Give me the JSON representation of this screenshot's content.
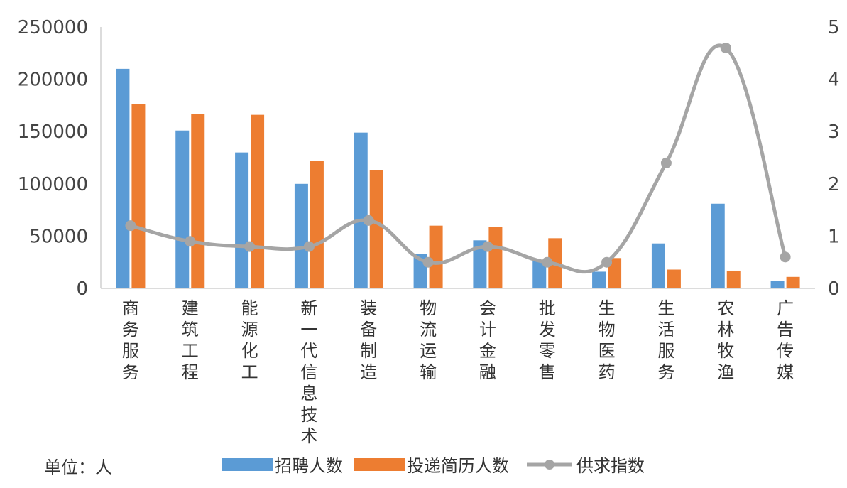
{
  "chart_data": {
    "type": "bar",
    "categories": [
      "商务服务",
      "建筑工程",
      "能源化工",
      "新一代信息技术",
      "装备制造",
      "物流运输",
      "会计金融",
      "批发零售",
      "生物医药",
      "生活服务",
      "农林牧渔",
      "广告传媒"
    ],
    "series": [
      {
        "name": "招聘人数",
        "type": "bar",
        "axis": "left",
        "color": "#5b9bd5",
        "values": [
          210000,
          151000,
          130000,
          100000,
          149000,
          33000,
          46000,
          26000,
          16000,
          43000,
          81000,
          7000
        ]
      },
      {
        "name": "投递简历人数",
        "type": "bar",
        "axis": "left",
        "color": "#ed7d31",
        "values": [
          176000,
          167000,
          166000,
          122000,
          113000,
          60000,
          59000,
          48000,
          29000,
          18000,
          17000,
          11000
        ]
      },
      {
        "name": "供求指数",
        "type": "line",
        "axis": "right",
        "color": "#a5a5a5",
        "values": [
          1.2,
          0.9,
          0.8,
          0.8,
          1.3,
          0.5,
          0.8,
          0.5,
          0.5,
          2.4,
          4.6,
          0.6
        ]
      }
    ],
    "y_left": {
      "ylim": [
        0,
        250000
      ],
      "ticks": [
        "0",
        "50000",
        "100000",
        "150000",
        "200000",
        "250000"
      ]
    },
    "y_right": {
      "ylim": [
        0,
        5
      ],
      "ticks": [
        "0",
        "1",
        "2",
        "3",
        "4",
        "5"
      ]
    },
    "unit_note": "单位：人",
    "legend_position": "bottom",
    "grid": false
  }
}
